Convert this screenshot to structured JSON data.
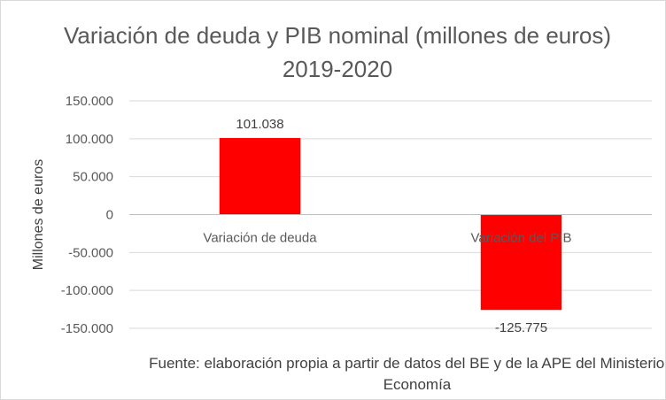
{
  "chart_data": {
    "type": "bar",
    "title": "Variación de deuda y PIB nominal (millones de euros) 2019-2020",
    "xlabel": "",
    "ylabel": "Millones de euros",
    "categories": [
      "Variación de deuda",
      "Variación del PIB"
    ],
    "values": [
      101038,
      -125775
    ],
    "data_labels": [
      "101.038",
      "-125.775"
    ],
    "ylim": [
      -150000,
      150000
    ],
    "yticks": [
      150000,
      100000,
      50000,
      0,
      -50000,
      -100000,
      -150000
    ],
    "ytick_labels": [
      "150.000",
      "100.000",
      "50.000",
      "0",
      "-50.000",
      "-100.000",
      "-150.000"
    ],
    "grid": true,
    "legend": "none",
    "bar_color": "#ff0000",
    "source_note": "Fuente: elaboración propia a partir de datos del BE y de la APE del Ministerio de Economía"
  }
}
